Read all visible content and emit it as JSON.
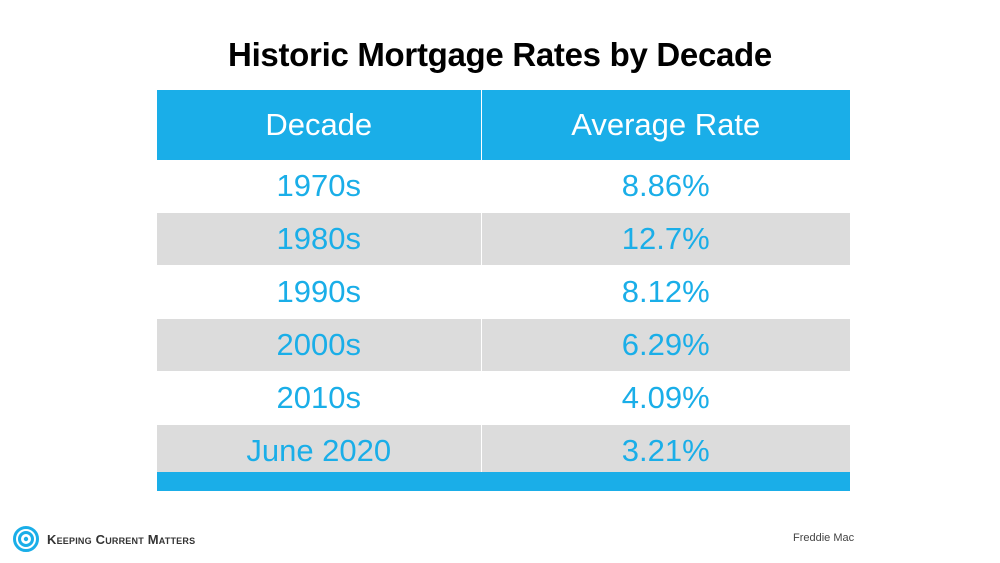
{
  "chart_data": {
    "type": "table",
    "title": "Historic Mortgage Rates by Decade",
    "columns": [
      "Decade",
      "Average Rate"
    ],
    "rows": [
      [
        "1970s",
        "8.86%"
      ],
      [
        "1980s",
        "12.7%"
      ],
      [
        "1990s",
        "8.12%"
      ],
      [
        "2000s",
        "6.29%"
      ],
      [
        "2010s",
        "4.09%"
      ],
      [
        "June 2020",
        "3.21%"
      ]
    ]
  },
  "branding": {
    "logo_text": "Keeping Current Matters",
    "logo_icon": "kcm-circle-logo-icon"
  },
  "source": "Freddie Mac",
  "colors": {
    "accent": "#1aaee8",
    "stripe": "#dcdcdc",
    "title": "#000000"
  }
}
